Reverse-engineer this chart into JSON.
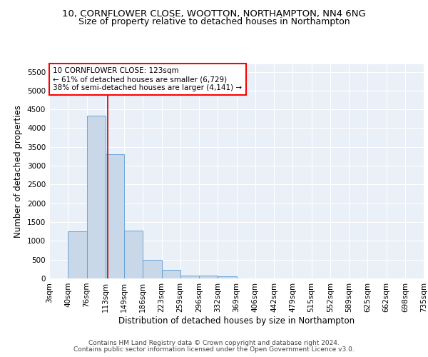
{
  "title1": "10, CORNFLOWER CLOSE, WOOTTON, NORTHAMPTON, NN4 6NG",
  "title2": "Size of property relative to detached houses in Northampton",
  "xlabel": "Distribution of detached houses by size in Northampton",
  "ylabel": "Number of detached properties",
  "footnote1": "Contains HM Land Registry data © Crown copyright and database right 2024.",
  "footnote2": "Contains public sector information licensed under the Open Government Licence v3.0.",
  "annotation_line1": "10 CORNFLOWER CLOSE: 123sqm",
  "annotation_line2": "← 61% of detached houses are smaller (6,729)",
  "annotation_line3": "38% of semi-detached houses are larger (4,141) →",
  "bar_values": [
    0,
    1260,
    4330,
    3300,
    1280,
    490,
    220,
    85,
    70,
    55,
    0,
    0,
    0,
    0,
    0,
    0,
    0,
    0,
    0,
    0
  ],
  "x_labels": [
    "3sqm",
    "40sqm",
    "76sqm",
    "113sqm",
    "149sqm",
    "186sqm",
    "223sqm",
    "259sqm",
    "296sqm",
    "332sqm",
    "369sqm",
    "406sqm",
    "442sqm",
    "479sqm",
    "515sqm",
    "552sqm",
    "589sqm",
    "625sqm",
    "662sqm",
    "698sqm",
    "735sqm"
  ],
  "bar_color": "#c8d8e8",
  "bar_edge_color": "#5b9bd5",
  "vline_x": 2.62,
  "vline_color": "#cc0000",
  "ylim": [
    0,
    5700
  ],
  "yticks": [
    0,
    500,
    1000,
    1500,
    2000,
    2500,
    3000,
    3500,
    4000,
    4500,
    5000,
    5500
  ],
  "background_color": "#eaf0f8",
  "title1_fontsize": 9.5,
  "title2_fontsize": 9,
  "annotation_fontsize": 7.5,
  "axis_label_fontsize": 8.5,
  "tick_fontsize": 7.5,
  "footnote_fontsize": 6.5
}
